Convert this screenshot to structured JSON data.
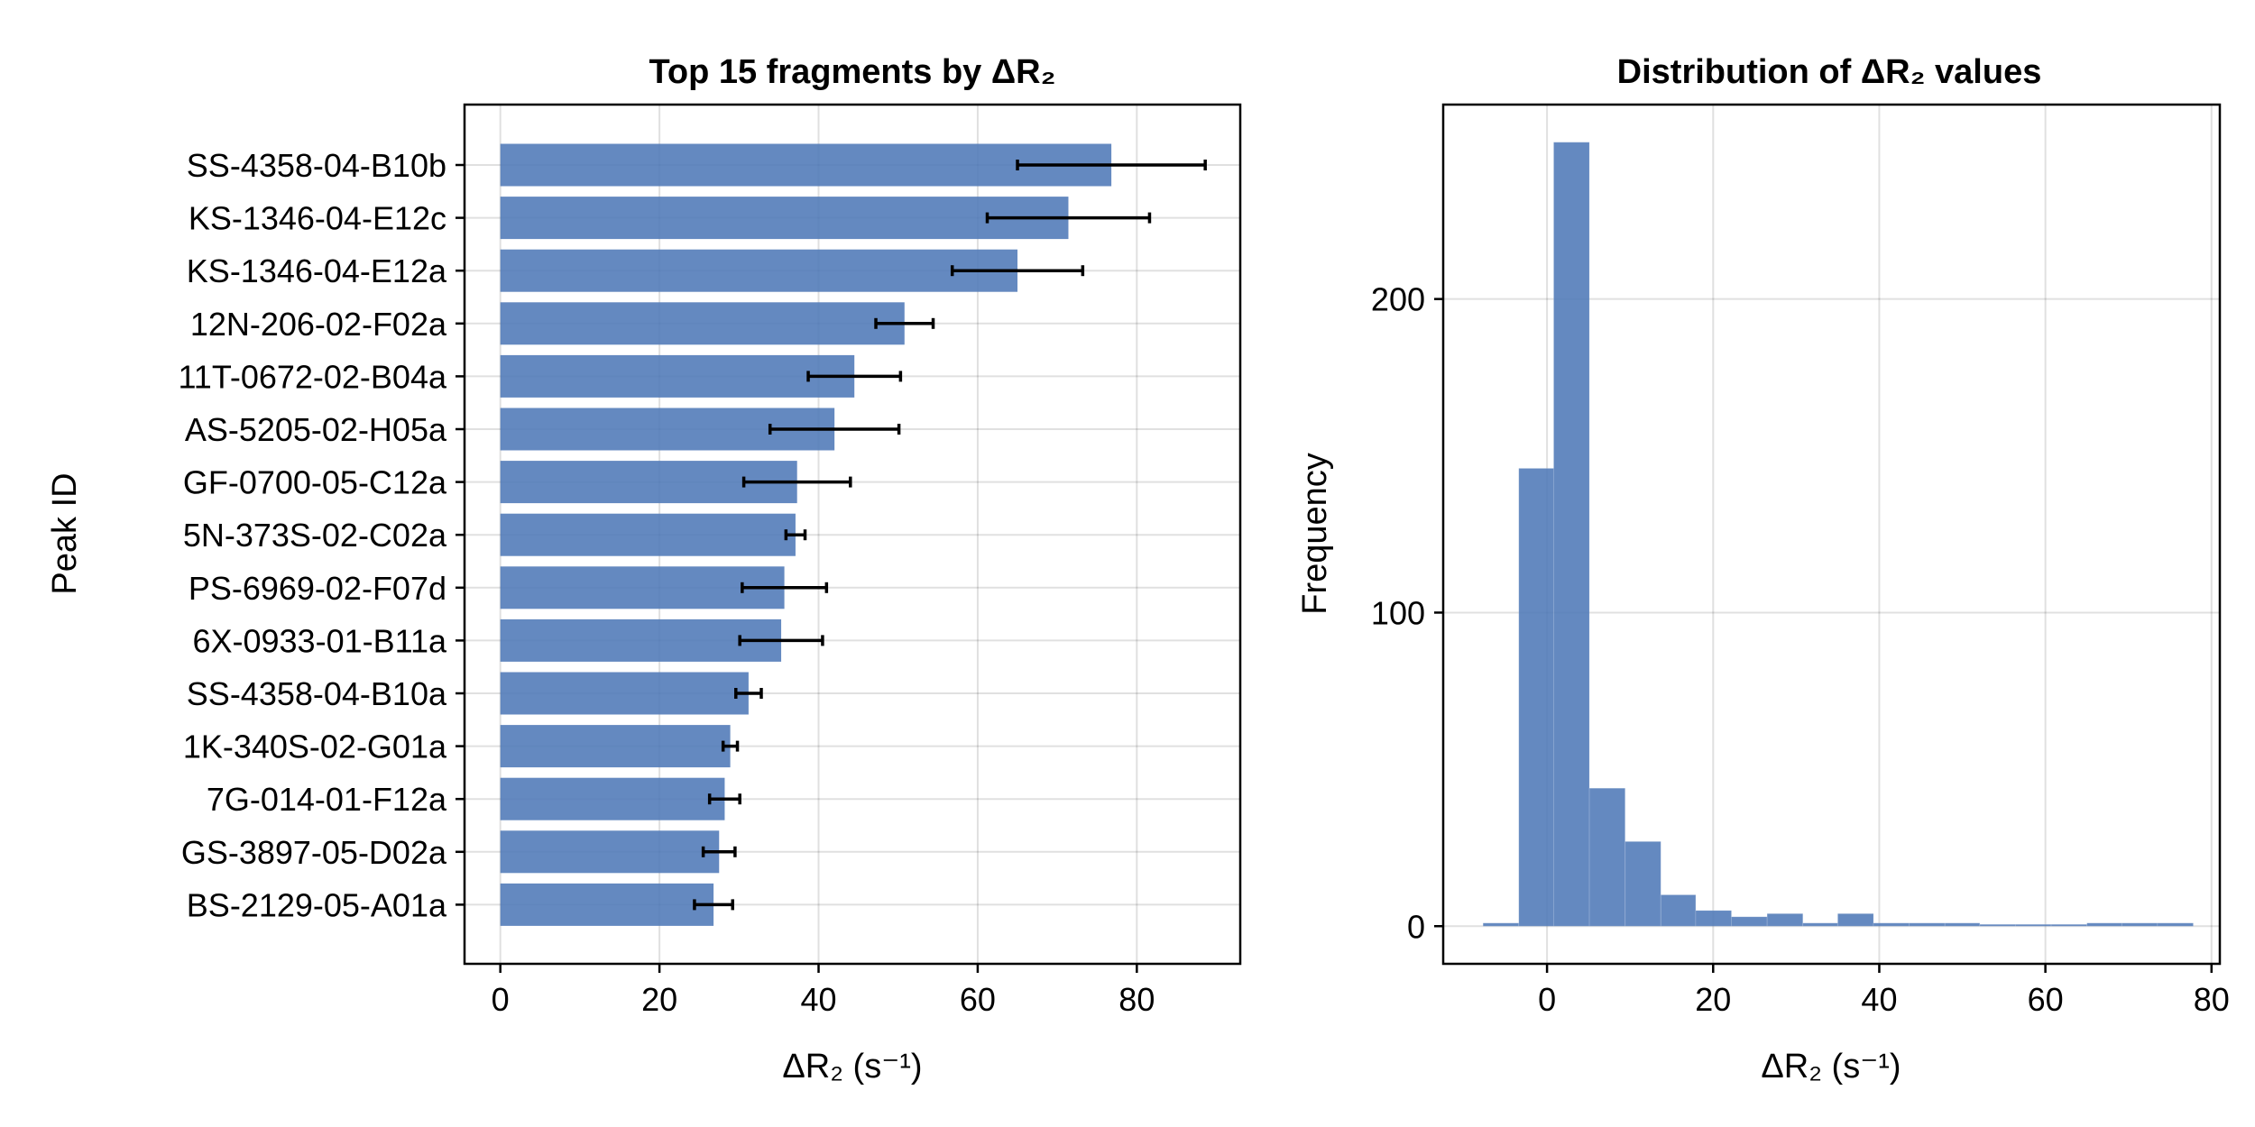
{
  "chart_data": [
    {
      "type": "bar",
      "orientation": "horizontal",
      "title": "Top 15 fragments by ΔR₂",
      "xlabel": "ΔR₂ (s⁻¹)",
      "ylabel": "Peak ID",
      "xlim": [
        -4.5,
        93
      ],
      "xticks": [
        0,
        20,
        40,
        60,
        80
      ],
      "categories": [
        "SS-4358-04-B10b",
        "KS-1346-04-E12c",
        "KS-1346-04-E12a",
        "12N-206-02-F02a",
        "11T-0672-02-B04a",
        "AS-5205-02-H05a",
        "GF-0700-05-C12a",
        "5N-373S-02-C02a",
        "PS-6969-02-F07d",
        "6X-0933-01-B11a",
        "SS-4358-04-B10a",
        "1K-340S-02-G01a",
        "7G-014-01-F12a",
        "GS-3897-05-D02a",
        "BS-2129-05-A01a"
      ],
      "values": [
        76.8,
        71.4,
        65.0,
        50.8,
        44.5,
        42.0,
        37.3,
        37.1,
        35.7,
        35.3,
        31.2,
        28.9,
        28.2,
        27.5,
        26.8
      ],
      "errors": [
        11.8,
        10.2,
        8.2,
        3.6,
        5.8,
        8.1,
        6.7,
        1.2,
        5.3,
        5.2,
        1.6,
        0.9,
        1.9,
        2.0,
        2.4
      ],
      "grid": true,
      "color": "#4e79b7",
      "error_color": "#000000"
    },
    {
      "type": "histogram",
      "title": "Distribution of ΔR₂ values",
      "xlabel": "ΔR₂ (s⁻¹)",
      "ylabel": "Frequency",
      "xlim": [
        -12.5,
        81
      ],
      "ylim": [
        -12,
        262
      ],
      "xticks": [
        0,
        20,
        40,
        60,
        80
      ],
      "yticks": [
        0,
        100,
        200
      ],
      "bin_edges": [
        -7.7,
        -3.4,
        0.8,
        5.1,
        9.4,
        13.7,
        17.9,
        22.2,
        26.5,
        30.8,
        35.0,
        39.3,
        43.6,
        47.9,
        52.1,
        56.4,
        60.7,
        65.0,
        69.2,
        73.5,
        77.8
      ],
      "counts": [
        1,
        146,
        250,
        44,
        27,
        10,
        5,
        3,
        4,
        1,
        4,
        1,
        1,
        1,
        0,
        0,
        0,
        1,
        1,
        1
      ],
      "grid": true,
      "color": "#4e79b7"
    }
  ]
}
